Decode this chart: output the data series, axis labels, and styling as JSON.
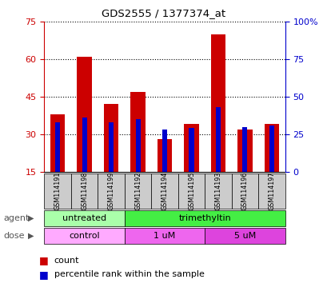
{
  "title": "GDS2555 / 1377374_at",
  "samples": [
    "GSM114191",
    "GSM114198",
    "GSM114199",
    "GSM114192",
    "GSM114194",
    "GSM114195",
    "GSM114193",
    "GSM114196",
    "GSM114197"
  ],
  "count_values": [
    38,
    61,
    42,
    47,
    28,
    34,
    70,
    32,
    34
  ],
  "percentile_values": [
    33,
    36,
    33,
    35,
    28,
    29,
    43,
    30,
    31
  ],
  "ylim_left": [
    15,
    75
  ],
  "ylim_right": [
    0,
    100
  ],
  "yticks_left": [
    15,
    30,
    45,
    60,
    75
  ],
  "yticks_right": [
    0,
    25,
    50,
    75,
    100
  ],
  "ytick_labels_right": [
    "0",
    "25",
    "50",
    "75",
    "100%"
  ],
  "bar_color_red": "#cc0000",
  "bar_color_blue": "#0000cc",
  "bar_width": 0.55,
  "blue_bar_width": 0.18,
  "agent_groups": [
    {
      "label": "untreated",
      "span": [
        0,
        3
      ],
      "color": "#aaffaa"
    },
    {
      "label": "trimethyltin",
      "span": [
        3,
        9
      ],
      "color": "#44ee44"
    }
  ],
  "dose_groups": [
    {
      "label": "control",
      "span": [
        0,
        3
      ],
      "color": "#ffaaff"
    },
    {
      "label": "1 uM",
      "span": [
        3,
        6
      ],
      "color": "#ee66ee"
    },
    {
      "label": "5 uM",
      "span": [
        6,
        9
      ],
      "color": "#dd44dd"
    }
  ],
  "axis_color_left": "#cc0000",
  "axis_color_right": "#0000cc",
  "sample_cell_color": "#cccccc",
  "legend_red_label": "count",
  "legend_blue_label": "percentile rank within the sample",
  "agent_label": "agent",
  "dose_label": "dose"
}
